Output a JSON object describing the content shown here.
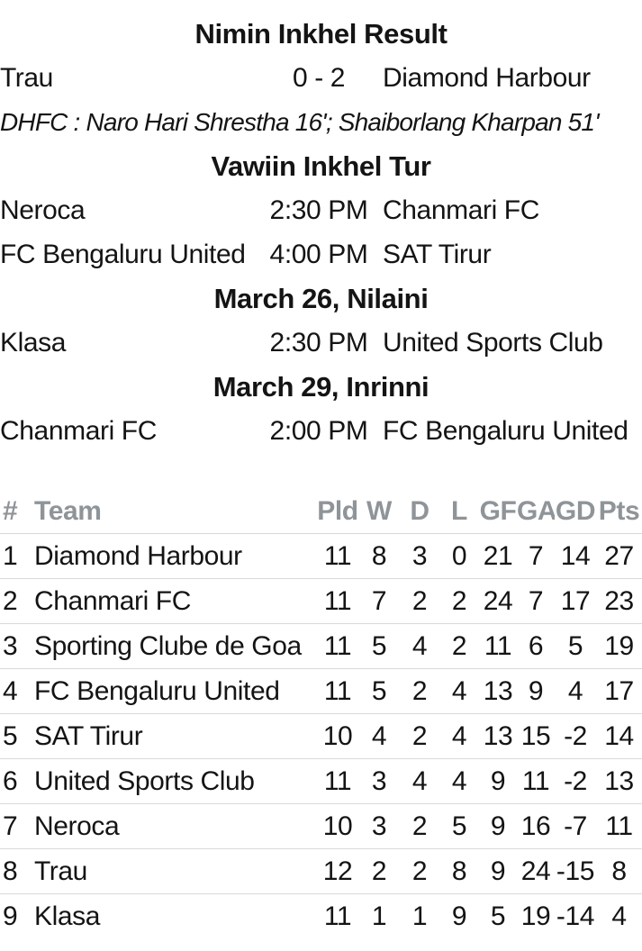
{
  "colors": {
    "text": "#141414",
    "table_header_text": "#8f9499",
    "divider": "#d9d9d9",
    "background": "#ffffff"
  },
  "results_section": {
    "title": "Nimin Inkhel Result",
    "match": {
      "home": "Trau",
      "score": "0 - 2",
      "away": "Diamond Harbour"
    },
    "scorers_note": "DHFC : Naro Hari Shrestha 16'; Shaiborlang Kharpan 51'"
  },
  "fixtures_sections": [
    {
      "title": "Vawiin Inkhel Tur",
      "matches": [
        {
          "home": "Neroca",
          "time": "2:30 PM",
          "away": "Chanmari FC"
        },
        {
          "home": "FC Bengaluru United",
          "time": "4:00 PM",
          "away": "SAT Tirur"
        }
      ]
    },
    {
      "title": "March 26, Nilaini",
      "matches": [
        {
          "home": "Klasa",
          "time": "2:30 PM",
          "away": "United Sports Club"
        }
      ]
    },
    {
      "title": "March 29, Inrinni",
      "matches": [
        {
          "home": "Chanmari FC",
          "time": "2:00 PM",
          "away": "FC Bengaluru United"
        }
      ]
    }
  ],
  "standings": {
    "columns": [
      "#",
      "Team",
      "Pld",
      "W",
      "D",
      "L",
      "GF",
      "GA",
      "GD",
      "Pts"
    ],
    "rows": [
      [
        "1",
        "Diamond Harbour",
        "11",
        "8",
        "3",
        "0",
        "21",
        "7",
        "14",
        "27"
      ],
      [
        "2",
        "Chanmari FC",
        "11",
        "7",
        "2",
        "2",
        "24",
        "7",
        "17",
        "23"
      ],
      [
        "3",
        "Sporting Clube de Goa",
        "11",
        "5",
        "4",
        "2",
        "11",
        "6",
        "5",
        "19"
      ],
      [
        "4",
        "FC Bengaluru United",
        "11",
        "5",
        "2",
        "4",
        "13",
        "9",
        "4",
        "17"
      ],
      [
        "5",
        "SAT Tirur",
        "10",
        "4",
        "2",
        "4",
        "13",
        "15",
        "-2",
        "14"
      ],
      [
        "6",
        "United Sports Club",
        "11",
        "3",
        "4",
        "4",
        "9",
        "11",
        "-2",
        "13"
      ],
      [
        "7",
        "Neroca",
        "10",
        "3",
        "2",
        "5",
        "9",
        "16",
        "-7",
        "11"
      ],
      [
        "8",
        "Trau",
        "12",
        "2",
        "2",
        "8",
        "9",
        "24",
        "-15",
        "8"
      ],
      [
        "9",
        "Klasa",
        "11",
        "1",
        "1",
        "9",
        "5",
        "19",
        "-14",
        "4"
      ]
    ]
  }
}
